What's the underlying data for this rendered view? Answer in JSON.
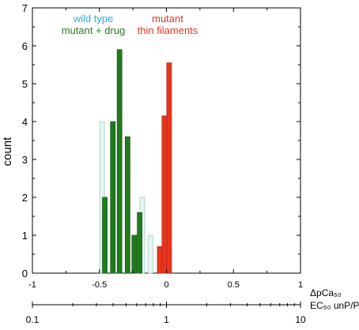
{
  "chart_data": {
    "type": "bar",
    "ylabel": "count",
    "ylim": [
      0,
      7
    ],
    "yticks": [
      0,
      1,
      2,
      3,
      4,
      5,
      6,
      7
    ],
    "xlim": [
      -1,
      1
    ],
    "xticks": [
      -1,
      -0.5,
      0,
      0.5,
      1
    ],
    "xtick_labels": [
      "-1",
      "-0.5",
      "0",
      "0.5",
      "1"
    ],
    "xlabel": "ΔpCa₅₀",
    "x2_axis": {
      "label": "EC₅₀ unP/P",
      "scale": "log",
      "xlim": [
        0.1,
        10
      ],
      "major_ticks": [
        0.1,
        1,
        10
      ],
      "major_labels": [
        "0.1",
        "1",
        "10"
      ]
    },
    "legend": [
      {
        "name": "wild type",
        "lines": [
          "wild type"
        ],
        "color": "#35a8e0",
        "placement": "top-left"
      },
      {
        "name": "mutant + drug",
        "lines": [
          "mutant + drug"
        ],
        "color": "#2b7b22",
        "placement": "top-left"
      },
      {
        "name": "mutant thin filaments",
        "lines": [
          "mutant",
          "thin filaments"
        ],
        "color": "#e8351e",
        "placement": "top-center"
      }
    ],
    "series": [
      {
        "name": "wild type",
        "fill": "#e7f3f1",
        "stroke": "#9ecfc2",
        "bars": [
          {
            "x": -0.48,
            "value": 4
          },
          {
            "x": -0.18,
            "value": 2
          },
          {
            "x": -0.23,
            "value": 1
          },
          {
            "x": -0.12,
            "value": 1
          }
        ]
      },
      {
        "name": "mutant + drug",
        "fill": "#217a1d",
        "stroke": "#1b5e17",
        "bars": [
          {
            "x": -0.46,
            "value": 2
          },
          {
            "x": -0.4,
            "value": 4
          },
          {
            "x": -0.35,
            "value": 5.9
          },
          {
            "x": -0.29,
            "value": 3.6
          },
          {
            "x": -0.24,
            "value": 1
          },
          {
            "x": -0.2,
            "value": 1.6
          }
        ]
      },
      {
        "name": "mutant thin filaments",
        "fill": "#e8351e",
        "stroke": "#b52814",
        "bars": [
          {
            "x": -0.05,
            "value": 0.7
          },
          {
            "x": -0.015,
            "value": 4.15
          },
          {
            "x": 0.02,
            "value": 5.55
          }
        ]
      }
    ]
  }
}
